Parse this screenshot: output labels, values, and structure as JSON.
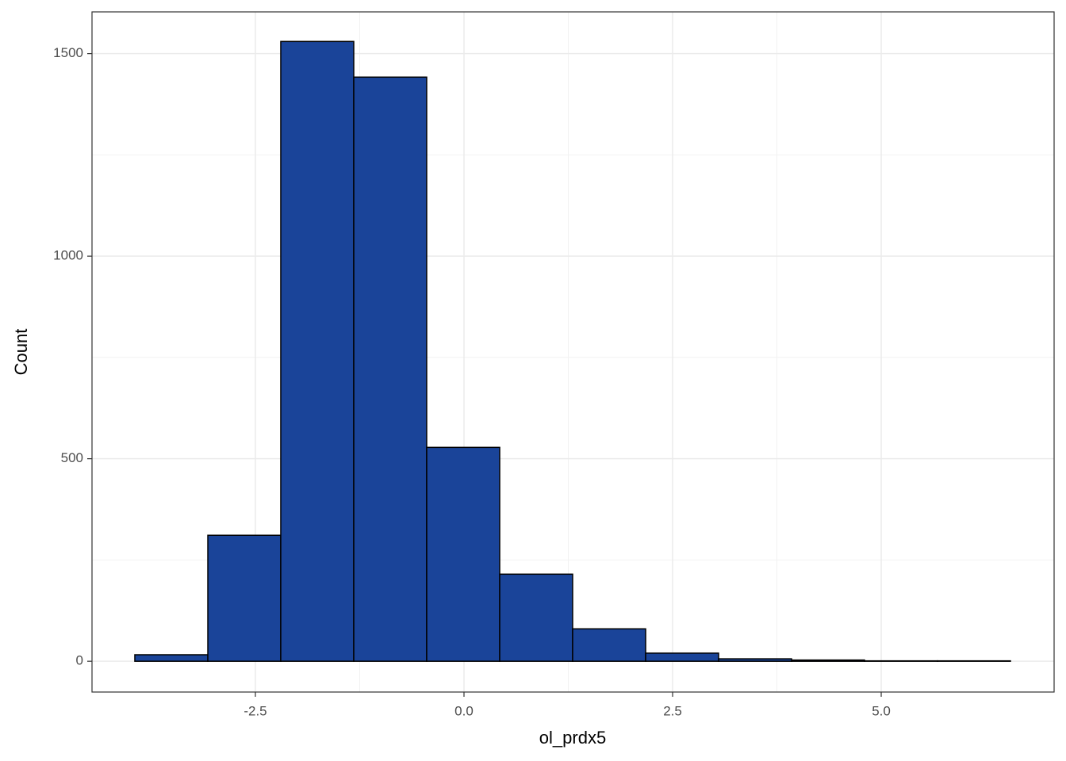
{
  "chart_data": {
    "type": "histogram",
    "x_label": "ol_prdx5",
    "y_label": "Count",
    "bins": [
      -3.945,
      -3.07,
      -2.196,
      -1.321,
      -0.447,
      0.428,
      1.302,
      2.177,
      3.051,
      3.926,
      4.8,
      5.675,
      6.549
    ],
    "values": [
      16,
      311,
      1530,
      1442,
      528,
      215,
      80,
      20,
      6,
      3,
      1,
      1
    ],
    "color": "#1a4499",
    "edge_color": "#000000",
    "xlim": [
      -4.458,
      7.072
    ],
    "ylim": [
      -76,
      1603
    ],
    "xticks": [
      -2.5,
      {
        "value": 0,
        "label": "0.0"
      },
      2.5,
      {
        "value": 5,
        "label": "5.0"
      }
    ],
    "yticks": [
      0,
      500,
      1000,
      1500
    ],
    "grid": true
  }
}
